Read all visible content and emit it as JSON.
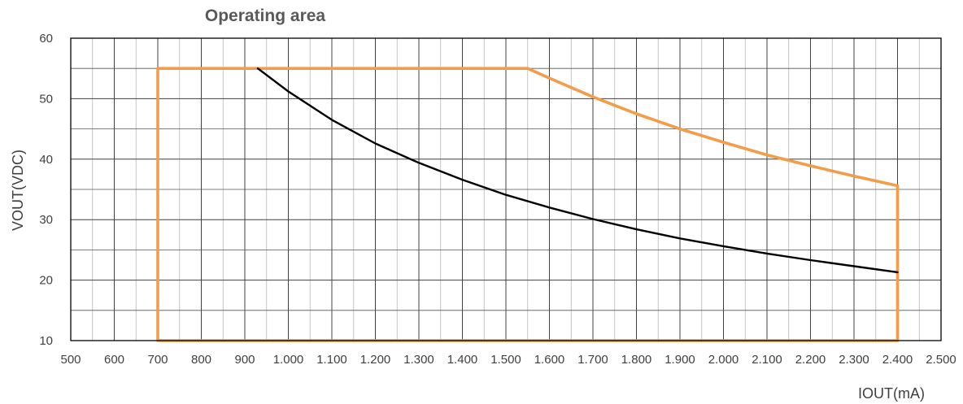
{
  "chart_data": {
    "type": "line",
    "title": "Operating area",
    "xlabel": "IOUT(mA)",
    "ylabel": "VOUT(VDC)",
    "xlim": [
      500,
      2500
    ],
    "ylim": [
      10,
      60
    ],
    "x_ticks": [
      500,
      600,
      700,
      800,
      900,
      1000,
      1100,
      1200,
      1300,
      1400,
      1500,
      1600,
      1700,
      1800,
      1900,
      2000,
      2100,
      2200,
      2300,
      2400,
      2500
    ],
    "x_tick_labels": [
      "500",
      "600",
      "700",
      "800",
      "900",
      "1.000",
      "1.100",
      "1.200",
      "1.300",
      "1.400",
      "1.500",
      "1.600",
      "1.700",
      "1.800",
      "1.900",
      "2.000",
      "2.100",
      "2.200",
      "2.300",
      "2.400",
      "2.500"
    ],
    "x_minor_step": 50,
    "y_ticks": [
      10,
      20,
      30,
      40,
      50,
      60
    ],
    "y_tick_labels": [
      "10",
      "20",
      "30",
      "40",
      "50",
      "60"
    ],
    "y_minor_step": 5,
    "grid": true,
    "legend": "none",
    "series": [
      {
        "color": "#f39c4a",
        "points": [
          [
            700,
            10
          ],
          [
            700,
            55
          ],
          [
            1550,
            55
          ],
          [
            1600,
            53.4
          ],
          [
            1700,
            50.3
          ],
          [
            1800,
            47.5
          ],
          [
            1900,
            45.0
          ],
          [
            2000,
            42.8
          ],
          [
            2100,
            40.7
          ],
          [
            2200,
            38.9
          ],
          [
            2300,
            37.2
          ],
          [
            2400,
            35.6
          ],
          [
            2400,
            10
          ],
          [
            700,
            10
          ]
        ]
      },
      {
        "color": "#000000",
        "points": [
          [
            930,
            55
          ],
          [
            1000,
            51.2
          ],
          [
            1100,
            46.5
          ],
          [
            1200,
            42.6
          ],
          [
            1300,
            39.4
          ],
          [
            1400,
            36.6
          ],
          [
            1500,
            34.1
          ],
          [
            1600,
            32.0
          ],
          [
            1700,
            30.1
          ],
          [
            1800,
            28.4
          ],
          [
            1900,
            26.9
          ],
          [
            2000,
            25.6
          ],
          [
            2100,
            24.4
          ],
          [
            2200,
            23.3
          ],
          [
            2300,
            22.3
          ],
          [
            2400,
            21.3
          ]
        ]
      }
    ]
  }
}
